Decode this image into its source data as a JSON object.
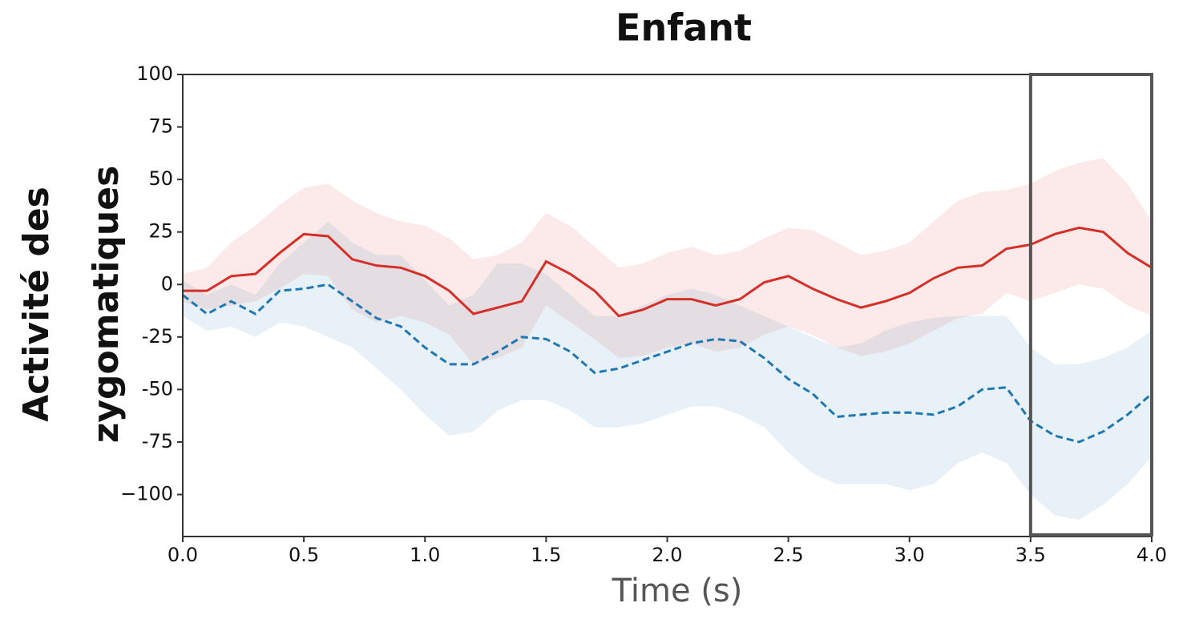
{
  "chart_data": {
    "type": "line",
    "title": "Enfant",
    "xlabel": "Time (s)",
    "ylabel": [
      "Activité des",
      "zygomatiques"
    ],
    "x": [
      0,
      0.1,
      0.2,
      0.3,
      0.4,
      0.5,
      0.6,
      0.7,
      0.8,
      0.9,
      1.0,
      1.1,
      1.2,
      1.3,
      1.4,
      1.5,
      1.6,
      1.7,
      1.8,
      1.9,
      2.0,
      2.1,
      2.2,
      2.3,
      2.4,
      2.5,
      2.6,
      2.7,
      2.8,
      2.9,
      3.0,
      3.1,
      3.2,
      3.3,
      3.4,
      3.5,
      3.6,
      3.7,
      3.8,
      3.9,
      4.0
    ],
    "series": [
      {
        "color": "#d62f27",
        "dashed": false,
        "values": [
          -3,
          -3,
          4,
          5,
          15,
          24,
          23,
          12,
          9,
          8,
          4,
          -3,
          -14,
          -11,
          -8,
          11,
          5,
          -3,
          -15,
          -12,
          -7,
          -7,
          -10,
          -7,
          1,
          4,
          -2,
          -7,
          -11,
          -8,
          -4,
          3,
          8,
          9,
          17,
          19,
          24,
          27,
          25,
          15,
          8
        ],
        "upper": [
          5,
          8,
          20,
          28,
          38,
          46,
          48,
          40,
          34,
          30,
          28,
          22,
          12,
          14,
          20,
          34,
          28,
          18,
          8,
          10,
          15,
          18,
          14,
          16,
          22,
          27,
          26,
          20,
          14,
          16,
          20,
          30,
          40,
          44,
          45,
          48,
          54,
          58,
          60,
          48,
          30
        ],
        "lower": [
          -8,
          -12,
          -10,
          -8,
          -2,
          5,
          4,
          -12,
          -18,
          -15,
          -18,
          -24,
          -38,
          -35,
          -30,
          -10,
          -18,
          -26,
          -35,
          -34,
          -30,
          -28,
          -32,
          -30,
          -24,
          -20,
          -24,
          -30,
          -34,
          -32,
          -28,
          -22,
          -16,
          -14,
          -4,
          -8,
          -4,
          0,
          -2,
          -10,
          -15
        ]
      },
      {
        "color": "#1f77b4",
        "dashed": true,
        "values": [
          -5,
          -14,
          -8,
          -14,
          -3,
          -2,
          0,
          -8,
          -16,
          -20,
          -30,
          -38,
          -38,
          -32,
          -25,
          -26,
          -32,
          -42,
          -40,
          -36,
          -32,
          -28,
          -26,
          -27,
          -35,
          -45,
          -52,
          -63,
          -62,
          -61,
          -61,
          -62,
          -58,
          -50,
          -49,
          -65,
          -72,
          -75,
          -70,
          -62,
          -52
        ],
        "upper": [
          2,
          -5,
          0,
          -5,
          10,
          20,
          30,
          20,
          14,
          14,
          2,
          -10,
          -5,
          10,
          10,
          5,
          -5,
          -15,
          -15,
          -10,
          -5,
          -2,
          -5,
          -10,
          -15,
          -20,
          -25,
          -30,
          -28,
          -22,
          -18,
          -16,
          -15,
          -15,
          -15,
          -30,
          -38,
          -38,
          -35,
          -30,
          -22
        ],
        "lower": [
          -15,
          -22,
          -20,
          -25,
          -18,
          -20,
          -25,
          -30,
          -40,
          -50,
          -62,
          -72,
          -70,
          -60,
          -55,
          -55,
          -60,
          -68,
          -68,
          -66,
          -62,
          -58,
          -58,
          -62,
          -68,
          -80,
          -90,
          -95,
          -95,
          -95,
          -98,
          -95,
          -85,
          -80,
          -85,
          -100,
          -110,
          -112,
          -105,
          -95,
          -82
        ]
      }
    ],
    "xlim": [
      0,
      4
    ],
    "ylim": [
      -120,
      100
    ],
    "xticks": [
      {
        "value": 0,
        "label": "0.0"
      },
      0.5,
      {
        "value": 1,
        "label": "1.0"
      },
      1.5,
      {
        "value": 2,
        "label": "2.0"
      },
      2.5,
      {
        "value": 3,
        "label": "3.0"
      },
      3.5,
      {
        "value": 4,
        "label": "4.0"
      }
    ],
    "yticks": [
      100,
      75,
      50,
      25,
      0,
      -25,
      -50,
      -75,
      {
        "value": -100,
        "label": "−100"
      }
    ],
    "highlight_x": [
      3.5,
      4.0
    ]
  }
}
